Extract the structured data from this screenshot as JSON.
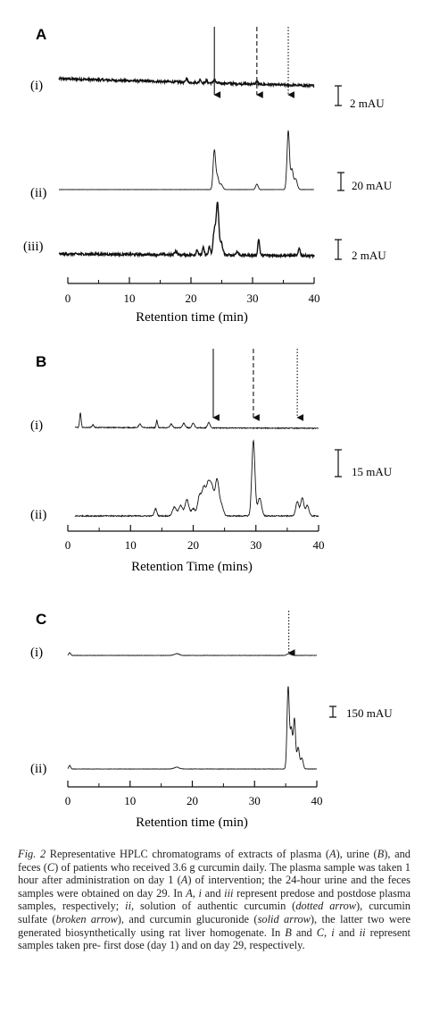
{
  "figure": {
    "caption_label": "Fig. 2",
    "caption_segments": [
      {
        "t": "  Representative HPLC chromatograms of extracts of plasma ("
      },
      {
        "t": "A",
        "i": true
      },
      {
        "t": "), urine ("
      },
      {
        "t": "B",
        "i": true
      },
      {
        "t": "), and feces ("
      },
      {
        "t": "C",
        "i": true
      },
      {
        "t": ") of patients who received 3.6 g curcumin daily. The plasma sample was taken 1 hour after administration on day 1 ("
      },
      {
        "t": "A",
        "i": true
      },
      {
        "t": ") of intervention; the 24-hour urine and the feces samples were obtained on day 29. In "
      },
      {
        "t": "A, i",
        "i": true
      },
      {
        "t": " and "
      },
      {
        "t": "iii",
        "i": true
      },
      {
        "t": " represent predose and postdose plasma samples, respectively; "
      },
      {
        "t": "ii,",
        "i": true
      },
      {
        "t": " solution of authentic curcumin ("
      },
      {
        "t": "dotted arrow",
        "i": true
      },
      {
        "t": "), curcumin sulfate ("
      },
      {
        "t": "broken arrow",
        "i": true
      },
      {
        "t": "), and curcumin glucuronide ("
      },
      {
        "t": "solid arrow",
        "i": true
      },
      {
        "t": "), the latter two were generated biosynthetically using rat liver homogenate. In "
      },
      {
        "t": "B",
        "i": true
      },
      {
        "t": " and "
      },
      {
        "t": "C, i",
        "i": true
      },
      {
        "t": " and "
      },
      {
        "t": "ii",
        "i": true
      },
      {
        "t": " represent samples taken pre- first dose (day 1) and on day 29, respectively."
      }
    ]
  },
  "chart_data": [
    {
      "type": "line",
      "panel_label": "A",
      "xlabel": "Retention time (min)",
      "xlim": [
        0,
        40
      ],
      "xticks": [
        0,
        10,
        20,
        30,
        40
      ],
      "arrows": [
        {
          "style": "solid",
          "x": 23.8
        },
        {
          "style": "dashed",
          "x": 30.7
        },
        {
          "style": "dotted",
          "x": 35.8
        }
      ],
      "traces": [
        {
          "name": "(i)",
          "scale": "2 mAU",
          "noise": 1.3,
          "drift": 8,
          "peaks": [
            [
              19.3,
              5,
              0.12
            ],
            [
              21.5,
              4,
              0.12
            ],
            [
              22.5,
              3,
              0.12
            ],
            [
              23.8,
              4,
              0.15
            ],
            [
              30.7,
              3,
              0.15
            ]
          ]
        },
        {
          "name": "(ii)",
          "scale": "20 mAU",
          "noise": 0.15,
          "drift": 0,
          "peaks": [
            [
              23.8,
              44,
              0.2
            ],
            [
              24.3,
              14,
              0.2
            ],
            [
              24.9,
              6,
              0.25
            ],
            [
              30.7,
              6,
              0.2
            ],
            [
              35.8,
              66,
              0.2
            ],
            [
              36.4,
              22,
              0.2
            ],
            [
              37.0,
              12,
              0.25
            ]
          ]
        },
        {
          "name": "(iii)",
          "scale": "2 mAU",
          "noise": 1.4,
          "drift": 2,
          "peaks": [
            [
              17.5,
              4,
              0.2
            ],
            [
              21.0,
              6,
              0.15
            ],
            [
              22.0,
              8,
              0.15
            ],
            [
              23.0,
              9,
              0.15
            ],
            [
              23.8,
              28,
              0.2
            ],
            [
              24.3,
              58,
              0.2
            ],
            [
              24.9,
              14,
              0.25
            ],
            [
              27.5,
              4,
              0.2
            ],
            [
              31.0,
              18,
              0.15
            ],
            [
              37.6,
              8,
              0.15
            ]
          ]
        }
      ]
    },
    {
      "type": "line",
      "panel_label": "B",
      "xlabel": "Retention Time (mins)",
      "xlim": [
        0,
        40
      ],
      "xticks": [
        0,
        10,
        20,
        30,
        40
      ],
      "arrows": [
        {
          "style": "solid",
          "x": 23.2
        },
        {
          "style": "dashed",
          "x": 29.6
        },
        {
          "style": "dotted",
          "x": 36.6
        }
      ],
      "traces": [
        {
          "name": "(i)",
          "scale": "",
          "noise": 0.5,
          "drift": 1,
          "peaks": [
            [
              2.0,
              16,
              0.12
            ],
            [
              4.0,
              3,
              0.15
            ],
            [
              11.5,
              4,
              0.2
            ],
            [
              14.2,
              8,
              0.12
            ],
            [
              16.5,
              4,
              0.2
            ],
            [
              18.5,
              5,
              0.2
            ],
            [
              20.0,
              5,
              0.2
            ],
            [
              22.5,
              6,
              0.2
            ]
          ]
        },
        {
          "name": "(ii)",
          "scale": "15 mAU",
          "noise": 0.6,
          "drift": 0,
          "peaks": [
            [
              14.0,
              8,
              0.2
            ],
            [
              17.0,
              10,
              0.3
            ],
            [
              18.0,
              12,
              0.3
            ],
            [
              19.0,
              18,
              0.3
            ],
            [
              20.0,
              8,
              0.3
            ],
            [
              21.0,
              22,
              0.3
            ],
            [
              21.7,
              30,
              0.3
            ],
            [
              22.4,
              34,
              0.3
            ],
            [
              23.0,
              30,
              0.3
            ],
            [
              23.8,
              40,
              0.3
            ],
            [
              24.5,
              12,
              0.3
            ],
            [
              29.6,
              84,
              0.25
            ],
            [
              30.6,
              20,
              0.3
            ],
            [
              36.6,
              16,
              0.25
            ],
            [
              37.4,
              20,
              0.25
            ],
            [
              38.2,
              12,
              0.25
            ]
          ]
        }
      ]
    },
    {
      "type": "line",
      "panel_label": "C",
      "xlabel": "Retention time (min)",
      "xlim": [
        0,
        40
      ],
      "xticks": [
        0,
        10,
        20,
        30,
        40
      ],
      "arrows": [
        {
          "style": "dotted",
          "x": 35.5
        }
      ],
      "traces": [
        {
          "name": "(i)",
          "scale": "",
          "noise": 0.2,
          "drift": 0,
          "peaks": [
            [
              0.3,
              3,
              0.15
            ],
            [
              17.5,
              2,
              0.4
            ],
            [
              35.5,
              2,
              0.3
            ]
          ]
        },
        {
          "name": "(ii)",
          "scale": "150 mAU",
          "noise": 0.2,
          "drift": 0,
          "peaks": [
            [
              0.3,
              4,
              0.15
            ],
            [
              17.5,
              2,
              0.4
            ],
            [
              35.4,
              92,
              0.18
            ],
            [
              35.9,
              44,
              0.18
            ],
            [
              36.4,
              56,
              0.18
            ],
            [
              37.0,
              24,
              0.2
            ],
            [
              37.6,
              12,
              0.2
            ]
          ]
        }
      ]
    }
  ]
}
